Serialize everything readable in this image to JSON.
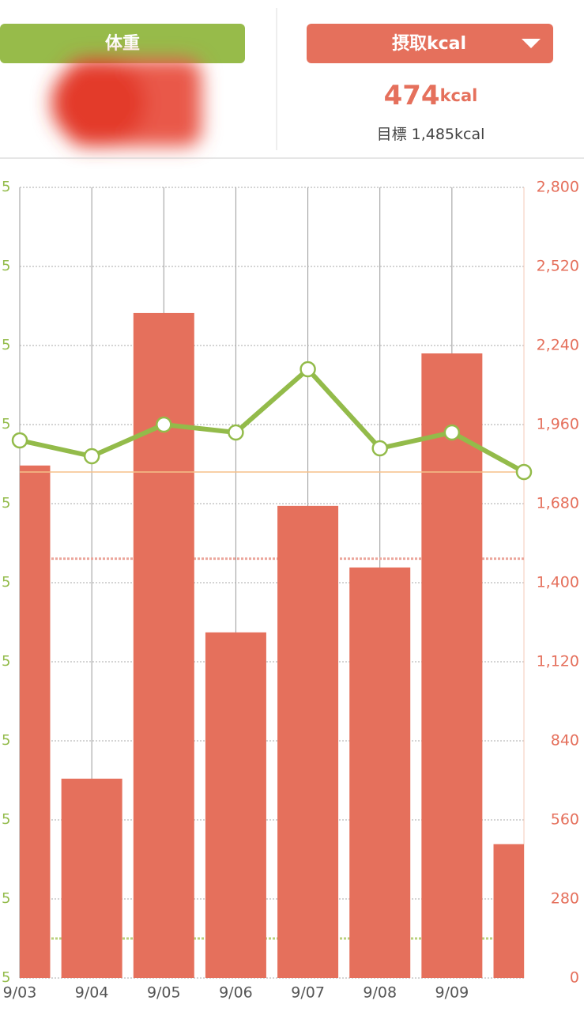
{
  "header": {
    "weight_button": "体重",
    "kcal_button": "摂取kcal",
    "current_value": "474",
    "current_unit": "kcal",
    "goal_label": "目標",
    "goal_value": "1,485kcal"
  },
  "chart_data": {
    "type": "bar",
    "categories": [
      "9/03",
      "9/04",
      "9/05",
      "9/06",
      "9/07",
      "9/08",
      "9/09",
      null
    ],
    "ylim": [
      0,
      10
    ],
    "yticks": [
      {
        "value": 0,
        "label": "5"
      },
      {
        "value": 1,
        "label": "5"
      },
      {
        "value": 2,
        "label": "5"
      },
      {
        "value": 3,
        "label": "5"
      },
      {
        "value": 4,
        "label": "5"
      },
      {
        "value": 5,
        "label": "5"
      },
      {
        "value": 6,
        "label": "5"
      },
      {
        "value": 7,
        "label": "5"
      },
      {
        "value": 8,
        "label": "5"
      },
      {
        "value": 9,
        "label": "5"
      },
      {
        "value": 10,
        "label": "5"
      }
    ],
    "y2lim": [
      0,
      2800
    ],
    "y2ticks": [
      0,
      280,
      560,
      840,
      {
        "value": 1120,
        "label": "1,120"
      },
      {
        "value": 1400,
        "label": "1,400"
      },
      {
        "value": 1680,
        "label": "1,680"
      },
      {
        "value": 1960,
        "label": "1,960"
      },
      {
        "value": 2240,
        "label": "2,240"
      },
      {
        "value": 2520,
        "label": "2,520"
      },
      {
        "value": 2800,
        "label": "2,800"
      }
    ],
    "series": [
      {
        "type": "bar",
        "axis": "y2",
        "color": "#e5705c",
        "values": [
          1815,
          706,
          2355,
          1224,
          1672,
          1454,
          2212,
          474
        ]
      },
      {
        "type": "line",
        "color": "#93bb4a",
        "values": [
          6.8,
          6.6,
          7.0,
          6.9,
          7.7,
          6.7,
          6.9,
          6.4
        ]
      }
    ],
    "goal_y2": 1485,
    "goal_color": "#eba69c",
    "weight_goal": 0.5,
    "weight_goal_color": "#b9d07e",
    "y_color": "#93bb4a",
    "y2_color": "#e5705c",
    "grid": true
  }
}
